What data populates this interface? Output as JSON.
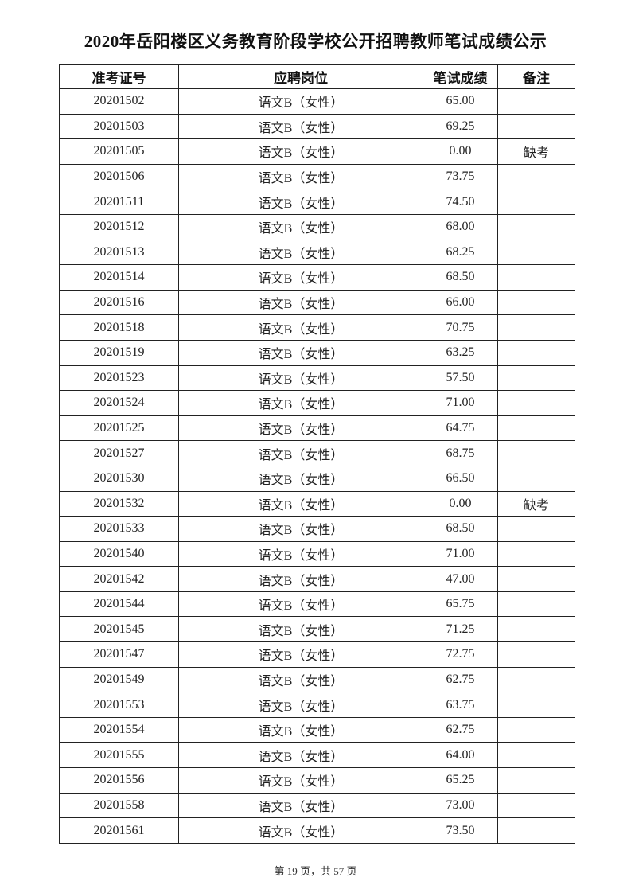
{
  "title": "2020年岳阳楼区义务教育阶段学校公开招聘教师笔试成绩公示",
  "table": {
    "headers": [
      "准考证号",
      "应聘岗位",
      "笔试成绩",
      "备注"
    ],
    "rows": [
      {
        "id": "20201502",
        "position": "语文B（女性）",
        "score": "65.00",
        "note": ""
      },
      {
        "id": "20201503",
        "position": "语文B（女性）",
        "score": "69.25",
        "note": ""
      },
      {
        "id": "20201505",
        "position": "语文B（女性）",
        "score": "0.00",
        "note": "缺考"
      },
      {
        "id": "20201506",
        "position": "语文B（女性）",
        "score": "73.75",
        "note": ""
      },
      {
        "id": "20201511",
        "position": "语文B（女性）",
        "score": "74.50",
        "note": ""
      },
      {
        "id": "20201512",
        "position": "语文B（女性）",
        "score": "68.00",
        "note": ""
      },
      {
        "id": "20201513",
        "position": "语文B（女性）",
        "score": "68.25",
        "note": ""
      },
      {
        "id": "20201514",
        "position": "语文B（女性）",
        "score": "68.50",
        "note": ""
      },
      {
        "id": "20201516",
        "position": "语文B（女性）",
        "score": "66.00",
        "note": ""
      },
      {
        "id": "20201518",
        "position": "语文B（女性）",
        "score": "70.75",
        "note": ""
      },
      {
        "id": "20201519",
        "position": "语文B（女性）",
        "score": "63.25",
        "note": ""
      },
      {
        "id": "20201523",
        "position": "语文B（女性）",
        "score": "57.50",
        "note": ""
      },
      {
        "id": "20201524",
        "position": "语文B（女性）",
        "score": "71.00",
        "note": ""
      },
      {
        "id": "20201525",
        "position": "语文B（女性）",
        "score": "64.75",
        "note": ""
      },
      {
        "id": "20201527",
        "position": "语文B（女性）",
        "score": "68.75",
        "note": ""
      },
      {
        "id": "20201530",
        "position": "语文B（女性）",
        "score": "66.50",
        "note": ""
      },
      {
        "id": "20201532",
        "position": "语文B（女性）",
        "score": "0.00",
        "note": "缺考"
      },
      {
        "id": "20201533",
        "position": "语文B（女性）",
        "score": "68.50",
        "note": ""
      },
      {
        "id": "20201540",
        "position": "语文B（女性）",
        "score": "71.00",
        "note": ""
      },
      {
        "id": "20201542",
        "position": "语文B（女性）",
        "score": "47.00",
        "note": ""
      },
      {
        "id": "20201544",
        "position": "语文B（女性）",
        "score": "65.75",
        "note": ""
      },
      {
        "id": "20201545",
        "position": "语文B（女性）",
        "score": "71.25",
        "note": ""
      },
      {
        "id": "20201547",
        "position": "语文B（女性）",
        "score": "72.75",
        "note": ""
      },
      {
        "id": "20201549",
        "position": "语文B（女性）",
        "score": "62.75",
        "note": ""
      },
      {
        "id": "20201553",
        "position": "语文B（女性）",
        "score": "63.75",
        "note": ""
      },
      {
        "id": "20201554",
        "position": "语文B（女性）",
        "score": "62.75",
        "note": ""
      },
      {
        "id": "20201555",
        "position": "语文B（女性）",
        "score": "64.00",
        "note": ""
      },
      {
        "id": "20201556",
        "position": "语文B（女性）",
        "score": "65.25",
        "note": ""
      },
      {
        "id": "20201558",
        "position": "语文B（女性）",
        "score": "73.00",
        "note": ""
      },
      {
        "id": "20201561",
        "position": "语文B（女性）",
        "score": "73.50",
        "note": ""
      }
    ]
  },
  "footer": "第 19 页，共 57 页"
}
